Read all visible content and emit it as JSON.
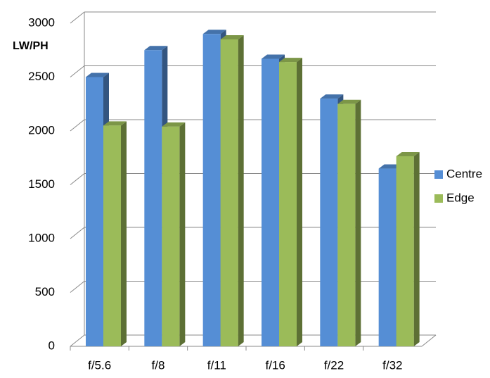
{
  "chart_data": {
    "type": "bar3d",
    "y_label": "LW/PH",
    "categories": [
      "f/5.6",
      "f/8",
      "f/11",
      "f/16",
      "f/22",
      "f/32"
    ],
    "series": [
      {
        "name": "Centre",
        "color": "#558ed5",
        "values": [
          2500,
          2750,
          2900,
          2670,
          2300,
          1650
        ]
      },
      {
        "name": "Edge",
        "color": "#9bbb59",
        "values": [
          2050,
          2040,
          2850,
          2640,
          2250,
          1765
        ]
      }
    ],
    "ylim": [
      0,
      3000
    ],
    "yticks": [
      0,
      500,
      1000,
      1500,
      2000,
      2500,
      3000
    ],
    "grid": true,
    "legend": "right"
  }
}
